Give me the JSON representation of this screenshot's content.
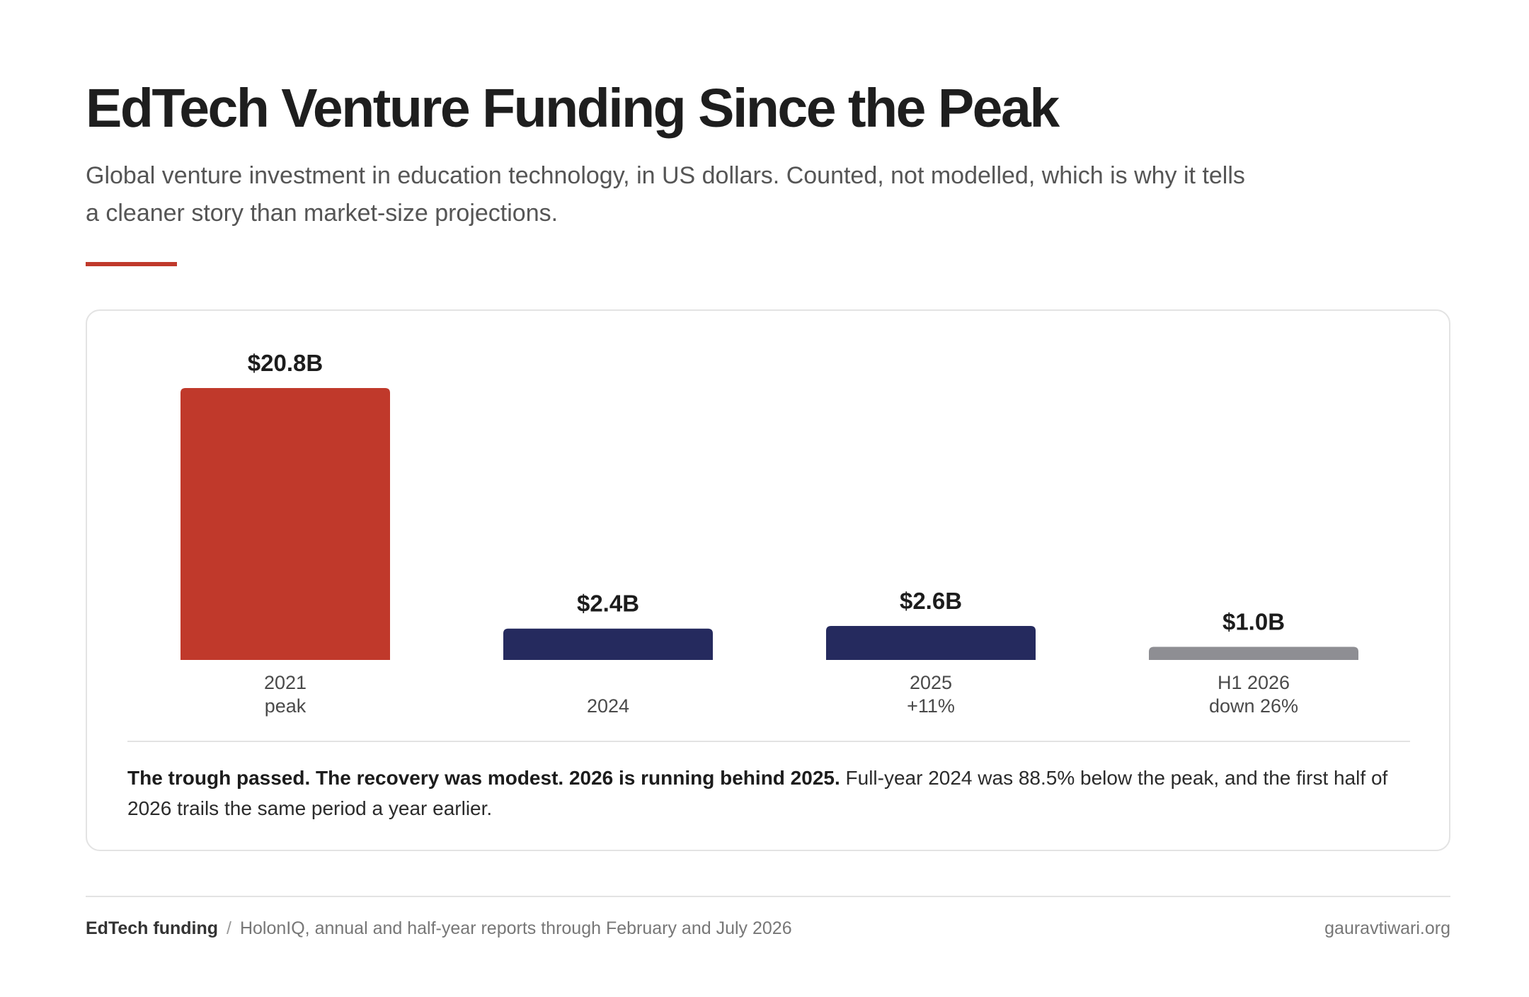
{
  "header": {
    "title": "EdTech Venture Funding Since the Peak",
    "subtitle": "Global venture investment in education technology, in US dollars. Counted, not modelled, which is why it tells a cleaner story than market-size projections."
  },
  "colors": {
    "accent": "#c0392b",
    "navy": "#252a5e",
    "grey": "#8e8e93"
  },
  "chart_data": {
    "type": "bar",
    "title": "",
    "xlabel": "",
    "ylabel": "",
    "grid": false,
    "legend": "none",
    "ylim": [
      0,
      20.8
    ],
    "categories": [
      "2021",
      "2024",
      "2025",
      "H1 2026"
    ],
    "category_notes": [
      "peak",
      "",
      "+11%",
      "down 26%"
    ],
    "values": [
      20.8,
      2.4,
      2.6,
      1.0
    ],
    "value_labels": [
      "$20.8B",
      "$2.4B",
      "$2.6B",
      "$1.0B"
    ],
    "bar_colors": [
      "#c0392b",
      "#252a5e",
      "#252a5e",
      "#8e8e93"
    ]
  },
  "takeaway": {
    "bold": "The trough passed. The recovery was modest. 2026 is running behind 2025.",
    "text": " Full-year 2024 was 88.5% below the peak, and the first half of 2026 trails the same period a year earlier."
  },
  "footer": {
    "topic": "EdTech funding",
    "separator": "/",
    "source": "HolonIQ, annual and half-year reports through February and July 2026",
    "site": "gauravtiwari.org"
  }
}
